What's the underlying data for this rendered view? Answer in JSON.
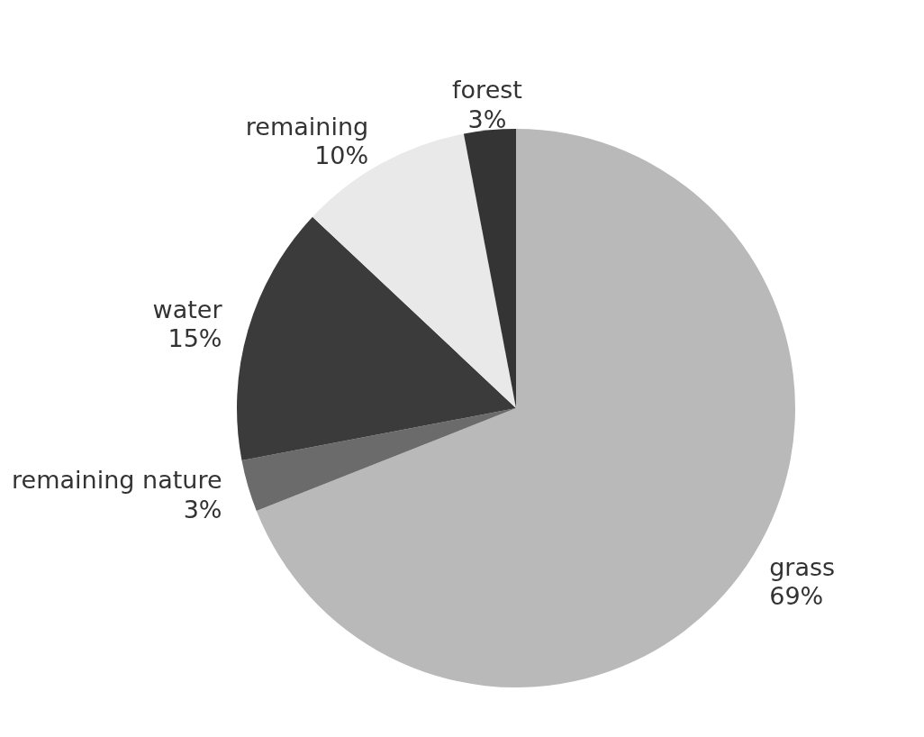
{
  "chart_data": {
    "type": "pie",
    "categories": [
      "grass",
      "remaining nature",
      "water",
      "remaining",
      "forest"
    ],
    "values": [
      69,
      3,
      15,
      10,
      3
    ],
    "value_labels": [
      "69%",
      "3%",
      "15%",
      "10%",
      "3%"
    ],
    "colors": [
      "#b9b9b9",
      "#6b6b6b",
      "#3b3b3b",
      "#e9e9e9",
      "#343434"
    ]
  }
}
